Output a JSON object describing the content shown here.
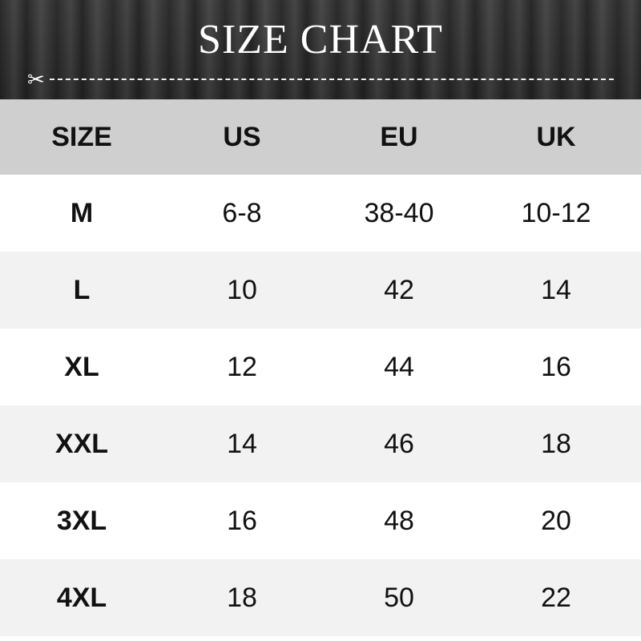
{
  "title": "SIZE CHART",
  "icons": {
    "cut": "scissors-icon"
  },
  "columns": [
    "SIZE",
    "US",
    "EU",
    "UK"
  ],
  "rows": [
    [
      "M",
      "6-8",
      "38-40",
      "10-12"
    ],
    [
      "L",
      "10",
      "42",
      "14"
    ],
    [
      "XL",
      "12",
      "44",
      "16"
    ],
    [
      "XXL",
      "14",
      "46",
      "18"
    ],
    [
      "3XL",
      "16",
      "48",
      "20"
    ],
    [
      "4XL",
      "18",
      "50",
      "22"
    ]
  ]
}
